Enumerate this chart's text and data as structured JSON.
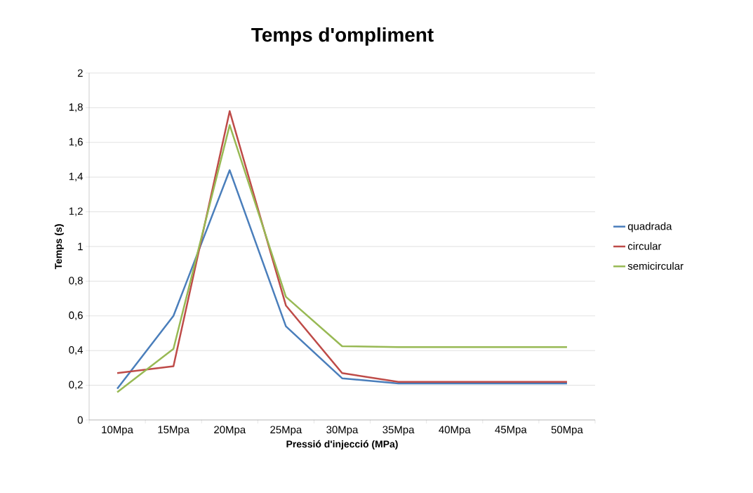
{
  "chart_data": {
    "type": "line",
    "title": "Temps d'ompliment",
    "xlabel": "Pressió d'injecció (MPa)",
    "ylabel": "Temps (s)",
    "categories": [
      "10Mpa",
      "15Mpa",
      "20Mpa",
      "25Mpa",
      "30Mpa",
      "35Mpa",
      "40Mpa",
      "45Mpa",
      "50Mpa"
    ],
    "series": [
      {
        "name": "quadrada",
        "color": "#4a7ebb",
        "values": [
          0.18,
          0.6,
          1.44,
          0.54,
          0.24,
          0.21,
          0.21,
          0.21,
          0.21
        ]
      },
      {
        "name": "circular",
        "color": "#be4b48",
        "values": [
          0.27,
          0.31,
          1.78,
          0.66,
          0.27,
          0.22,
          0.22,
          0.22,
          0.22
        ]
      },
      {
        "name": "semicircular",
        "color": "#98b954",
        "values": [
          0.16,
          0.41,
          1.7,
          0.71,
          0.425,
          0.42,
          0.42,
          0.42,
          0.42
        ]
      }
    ],
    "ylim": [
      0,
      2
    ],
    "yticks": [
      0,
      {
        "value": 0.2,
        "label": "0,2"
      },
      {
        "value": 0.4,
        "label": "0,4"
      },
      {
        "value": 0.6,
        "label": "0,6"
      },
      {
        "value": 0.8,
        "label": "0,8"
      },
      1,
      {
        "value": 1.2,
        "label": "1,2"
      },
      {
        "value": 1.4,
        "label": "1,4"
      },
      {
        "value": 1.6,
        "label": "1,6"
      },
      {
        "value": 1.8,
        "label": "1,8"
      },
      2
    ],
    "grid": "y",
    "legend": "right",
    "line_style": "solid",
    "marker": "none"
  }
}
